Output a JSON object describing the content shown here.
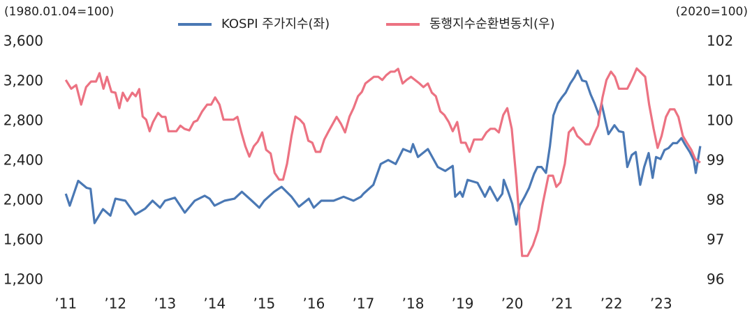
{
  "chart_data": {
    "type": "line",
    "left_axis_note": "(1980.01.04=100)",
    "right_axis_note": "(2020=100)",
    "xlim": [
      2010.8,
      2023.82
    ],
    "xticks": [
      {
        "value": 2011,
        "label": "’11"
      },
      {
        "value": 2012,
        "label": "’12"
      },
      {
        "value": 2013,
        "label": "’13"
      },
      {
        "value": 2014,
        "label": "’14"
      },
      {
        "value": 2015,
        "label": "’15"
      },
      {
        "value": 2016,
        "label": "’16"
      },
      {
        "value": 2017,
        "label": "’17"
      },
      {
        "value": 2018,
        "label": "’18"
      },
      {
        "value": 2019,
        "label": "’19"
      },
      {
        "value": 2020,
        "label": "’20"
      },
      {
        "value": 2021,
        "label": "’21"
      },
      {
        "value": 2022,
        "label": "’22"
      },
      {
        "value": 2023,
        "label": "’23"
      }
    ],
    "ylim": [
      1200,
      3600
    ],
    "yticks": [
      {
        "value": 1200,
        "label": "1,200"
      },
      {
        "value": 1600,
        "label": "1,600"
      },
      {
        "value": 2000,
        "label": "2,000"
      },
      {
        "value": 2400,
        "label": "2,400"
      },
      {
        "value": 2800,
        "label": "2,800"
      },
      {
        "value": 3200,
        "label": "3,200"
      },
      {
        "value": 3600,
        "label": "3,600"
      }
    ],
    "y2lim": [
      96,
      102
    ],
    "y2ticks": [
      96,
      97,
      98,
      99,
      100,
      101,
      102
    ],
    "grid": false,
    "legend": "top",
    "series": [
      {
        "name": "KOSPI 주가지수(좌)",
        "color": "#4a78b4",
        "axis": "y",
        "x": [
          2011.0,
          2011.08,
          2011.25,
          2011.42,
          2011.5,
          2011.58,
          2011.75,
          2011.9,
          2012.0,
          2012.2,
          2012.4,
          2012.6,
          2012.75,
          2012.9,
          2013.0,
          2013.2,
          2013.4,
          2013.6,
          2013.8,
          2013.9,
          2014.0,
          2014.2,
          2014.4,
          2014.55,
          2014.75,
          2014.9,
          2015.0,
          2015.2,
          2015.35,
          2015.55,
          2015.7,
          2015.9,
          2016.0,
          2016.15,
          2016.4,
          2016.6,
          2016.8,
          2016.95,
          2017.0,
          2017.2,
          2017.35,
          2017.5,
          2017.65,
          2017.8,
          2017.95,
          2018.0,
          2018.1,
          2018.3,
          2018.5,
          2018.65,
          2018.8,
          2018.85,
          2018.95,
          2019.0,
          2019.1,
          2019.3,
          2019.45,
          2019.55,
          2019.7,
          2019.8,
          2019.83,
          2019.92,
          2020.0,
          2020.08,
          2020.15,
          2020.25,
          2020.34,
          2020.44,
          2020.51,
          2020.59,
          2020.68,
          2020.76,
          2020.83,
          2020.92,
          2021.0,
          2021.08,
          2021.17,
          2021.25,
          2021.32,
          2021.41,
          2021.49,
          2021.58,
          2021.66,
          2021.75,
          2021.8,
          2021.94,
          2022.06,
          2022.15,
          2022.24,
          2022.32,
          2022.41,
          2022.49,
          2022.58,
          2022.66,
          2022.75,
          2022.83,
          2022.9,
          2022.99,
          2023.07,
          2023.15,
          2023.24,
          2023.32,
          2023.41,
          2023.49,
          2023.58,
          2023.66,
          2023.7,
          2023.79
        ],
        "values": [
          2070,
          1950,
          2200,
          2130,
          2120,
          1775,
          1915,
          1850,
          2020,
          2000,
          1860,
          1920,
          2000,
          1930,
          2000,
          2030,
          1880,
          2000,
          2050,
          2020,
          1950,
          2000,
          2020,
          2090,
          2000,
          1930,
          2000,
          2090,
          2140,
          2040,
          1940,
          2020,
          1930,
          2000,
          2000,
          2040,
          2000,
          2040,
          2070,
          2160,
          2370,
          2410,
          2370,
          2520,
          2490,
          2570,
          2440,
          2520,
          2340,
          2300,
          2350,
          2040,
          2090,
          2040,
          2210,
          2180,
          2040,
          2140,
          2000,
          2070,
          2210,
          2090,
          1970,
          1760,
          1950,
          2040,
          2130,
          2270,
          2340,
          2340,
          2280,
          2550,
          2860,
          2980,
          3040,
          3090,
          3180,
          3240,
          3310,
          3210,
          3200,
          3070,
          2980,
          2860,
          2980,
          2670,
          2760,
          2700,
          2690,
          2340,
          2460,
          2490,
          2160,
          2340,
          2480,
          2230,
          2440,
          2420,
          2510,
          2530,
          2580,
          2580,
          2630,
          2560,
          2490,
          2410,
          2280,
          2550
        ]
      },
      {
        "name": "동행지수순환변동치(우)",
        "color": "#ec7282",
        "axis": "y2",
        "x": [
          2011.0,
          2011.11,
          2011.21,
          2011.31,
          2011.41,
          2011.51,
          2011.61,
          2011.68,
          2011.76,
          2011.83,
          2011.92,
          2012.0,
          2012.08,
          2012.15,
          2012.24,
          2012.34,
          2012.41,
          2012.48,
          2012.55,
          2012.62,
          2012.69,
          2012.76,
          2012.86,
          2012.94,
          2013.01,
          2013.07,
          2013.23,
          2013.31,
          2013.39,
          2013.49,
          2013.58,
          2013.65,
          2013.75,
          2013.85,
          2013.93,
          2014.01,
          2014.1,
          2014.18,
          2014.38,
          2014.46,
          2014.54,
          2014.62,
          2014.7,
          2014.79,
          2014.87,
          2014.96,
          2015.04,
          2015.13,
          2015.21,
          2015.3,
          2015.38,
          2015.46,
          2015.55,
          2015.63,
          2015.72,
          2015.8,
          2015.89,
          2015.97,
          2016.04,
          2016.13,
          2016.21,
          2016.3,
          2016.38,
          2016.46,
          2016.55,
          2016.63,
          2016.72,
          2016.8,
          2016.89,
          2016.97,
          2017.04,
          2017.13,
          2017.21,
          2017.3,
          2017.38,
          2017.46,
          2017.55,
          2017.63,
          2017.7,
          2017.79,
          2017.87,
          2017.96,
          2018.04,
          2018.13,
          2018.21,
          2018.3,
          2018.38,
          2018.46,
          2018.55,
          2018.63,
          2018.72,
          2018.8,
          2018.89,
          2018.97,
          2019.06,
          2019.14,
          2019.23,
          2019.31,
          2019.39,
          2019.48,
          2019.56,
          2019.65,
          2019.73,
          2019.82,
          2019.9,
          2019.99,
          2020.08,
          2020.2,
          2020.31,
          2020.42,
          2020.52,
          2020.62,
          2020.73,
          2020.82,
          2020.89,
          2020.97,
          2021.06,
          2021.14,
          2021.23,
          2021.31,
          2021.39,
          2021.48,
          2021.56,
          2021.65,
          2021.73,
          2021.82,
          2021.9,
          2021.99,
          2022.07,
          2022.15,
          2022.32,
          2022.41,
          2022.51,
          2022.59,
          2022.68,
          2022.76,
          2022.85,
          2022.93,
          2023.01,
          2023.1,
          2023.18,
          2023.27,
          2023.35,
          2023.44,
          2023.52,
          2023.61,
          2023.69,
          2023.79
        ],
        "values": [
          101.04,
          100.82,
          100.91,
          100.42,
          100.86,
          101.0,
          101.0,
          101.21,
          100.82,
          101.12,
          100.74,
          100.72,
          100.33,
          100.72,
          100.51,
          100.72,
          100.63,
          100.81,
          100.12,
          100.04,
          99.75,
          99.98,
          100.21,
          100.11,
          100.11,
          99.75,
          99.75,
          99.89,
          99.81,
          99.77,
          99.98,
          100.02,
          100.25,
          100.42,
          100.42,
          100.6,
          100.42,
          100.04,
          100.04,
          100.11,
          99.72,
          99.37,
          99.11,
          99.37,
          99.49,
          99.72,
          99.28,
          99.19,
          98.7,
          98.53,
          98.53,
          98.93,
          99.63,
          100.12,
          100.04,
          99.93,
          99.51,
          99.46,
          99.23,
          99.23,
          99.54,
          99.75,
          99.93,
          100.11,
          99.93,
          99.72,
          100.12,
          100.33,
          100.63,
          100.74,
          100.95,
          101.04,
          101.12,
          101.12,
          101.04,
          101.16,
          101.25,
          101.25,
          101.32,
          100.95,
          101.04,
          101.12,
          101.04,
          100.95,
          100.86,
          100.95,
          100.72,
          100.63,
          100.25,
          100.16,
          99.98,
          99.75,
          99.98,
          99.46,
          99.46,
          99.23,
          99.54,
          99.54,
          99.54,
          99.72,
          99.81,
          99.81,
          99.72,
          100.16,
          100.33,
          99.81,
          98.58,
          96.61,
          96.61,
          96.88,
          97.26,
          97.96,
          98.63,
          98.63,
          98.35,
          98.46,
          98.93,
          99.72,
          99.84,
          99.63,
          99.54,
          99.42,
          99.42,
          99.68,
          99.89,
          100.6,
          101.04,
          101.25,
          101.12,
          100.82,
          100.82,
          101.04,
          101.33,
          101.23,
          101.12,
          100.42,
          99.81,
          99.33,
          99.63,
          100.11,
          100.3,
          100.3,
          100.11,
          99.63,
          99.46,
          99.28,
          99.05,
          98.96
        ]
      }
    ]
  }
}
